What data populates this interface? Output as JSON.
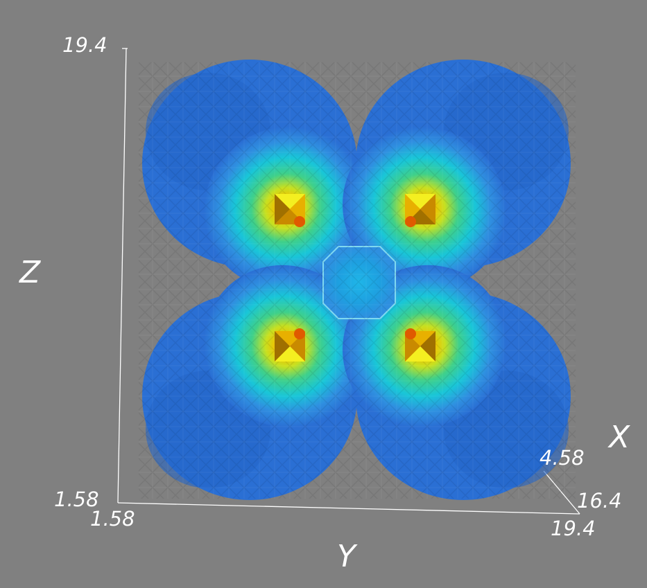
{
  "axes": {
    "x": {
      "title": "X",
      "min_label": "4.58",
      "max_label": "16.4"
    },
    "y": {
      "title": "Y",
      "min_label": "1.58",
      "max_label": "19.4"
    },
    "z": {
      "title": "Z",
      "min_label": "1.58",
      "max_label": "19.4"
    }
  },
  "colors": {
    "background": "#808080",
    "axis_line": "#ffffff",
    "colormap": [
      "#1f5fd0",
      "#2f8fe0",
      "#19c6d8",
      "#3fd08a",
      "#c8e020",
      "#f0c000",
      "#e05a00"
    ]
  }
}
